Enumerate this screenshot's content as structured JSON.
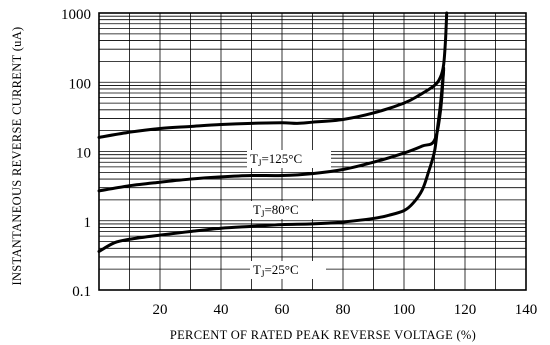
{
  "chart_data": {
    "type": "line",
    "title": "",
    "xlabel": "PERCENT OF RATED PEAK REVERSE VOLTAGE (%)",
    "ylabel": "INSTANTANEOUS REVERSE CURRENT (uA)",
    "xlim": [
      0,
      140
    ],
    "ylim": [
      0.1,
      1000
    ],
    "yscale": "log",
    "grid": true,
    "x_ticks": [
      20,
      40,
      60,
      80,
      100,
      120,
      140
    ],
    "y_ticks": [
      {
        "value": 0.1,
        "label": "0.1"
      },
      {
        "value": 1,
        "label": "1"
      },
      {
        "value": 10,
        "label": "10"
      },
      {
        "value": 100,
        "label": "100"
      },
      {
        "value": 1000,
        "label": "1000"
      }
    ],
    "series": [
      {
        "name": "T",
        "subscript": "J",
        "suffix": "=125°C",
        "points": [
          [
            0,
            16
          ],
          [
            10,
            19
          ],
          [
            20,
            21.5
          ],
          [
            30,
            23
          ],
          [
            40,
            24.5
          ],
          [
            50,
            25.5
          ],
          [
            60,
            26
          ],
          [
            65,
            25.5
          ],
          [
            70,
            26.5
          ],
          [
            80,
            29
          ],
          [
            90,
            36
          ],
          [
            100,
            50
          ],
          [
            105,
            65
          ],
          [
            110,
            90
          ],
          [
            112,
            120
          ],
          [
            113,
            180
          ],
          [
            113.6,
            400
          ],
          [
            114,
            1000
          ]
        ]
      },
      {
        "name": "T",
        "subscript": "J",
        "suffix": "=80°C",
        "points": [
          [
            0,
            2.7
          ],
          [
            10,
            3.2
          ],
          [
            20,
            3.6
          ],
          [
            30,
            4.0
          ],
          [
            40,
            4.3
          ],
          [
            50,
            4.5
          ],
          [
            60,
            4.5
          ],
          [
            70,
            4.8
          ],
          [
            80,
            5.5
          ],
          [
            90,
            7
          ],
          [
            100,
            9.5
          ],
          [
            106,
            12
          ],
          [
            110,
            14.5
          ],
          [
            112,
            40
          ],
          [
            113,
            160
          ]
        ]
      },
      {
        "name": "T",
        "subscript": "J",
        "suffix": "=25°C",
        "points": [
          [
            0,
            0.36
          ],
          [
            5,
            0.48
          ],
          [
            10,
            0.54
          ],
          [
            20,
            0.62
          ],
          [
            30,
            0.7
          ],
          [
            40,
            0.78
          ],
          [
            50,
            0.83
          ],
          [
            60,
            0.88
          ],
          [
            70,
            0.9
          ],
          [
            80,
            0.96
          ],
          [
            90,
            1.08
          ],
          [
            95,
            1.2
          ],
          [
            100,
            1.4
          ],
          [
            103,
            1.8
          ],
          [
            106,
            2.8
          ],
          [
            108,
            5
          ],
          [
            110,
            10
          ],
          [
            111,
            22
          ],
          [
            112,
            50
          ],
          [
            113,
            150
          ]
        ]
      }
    ]
  }
}
